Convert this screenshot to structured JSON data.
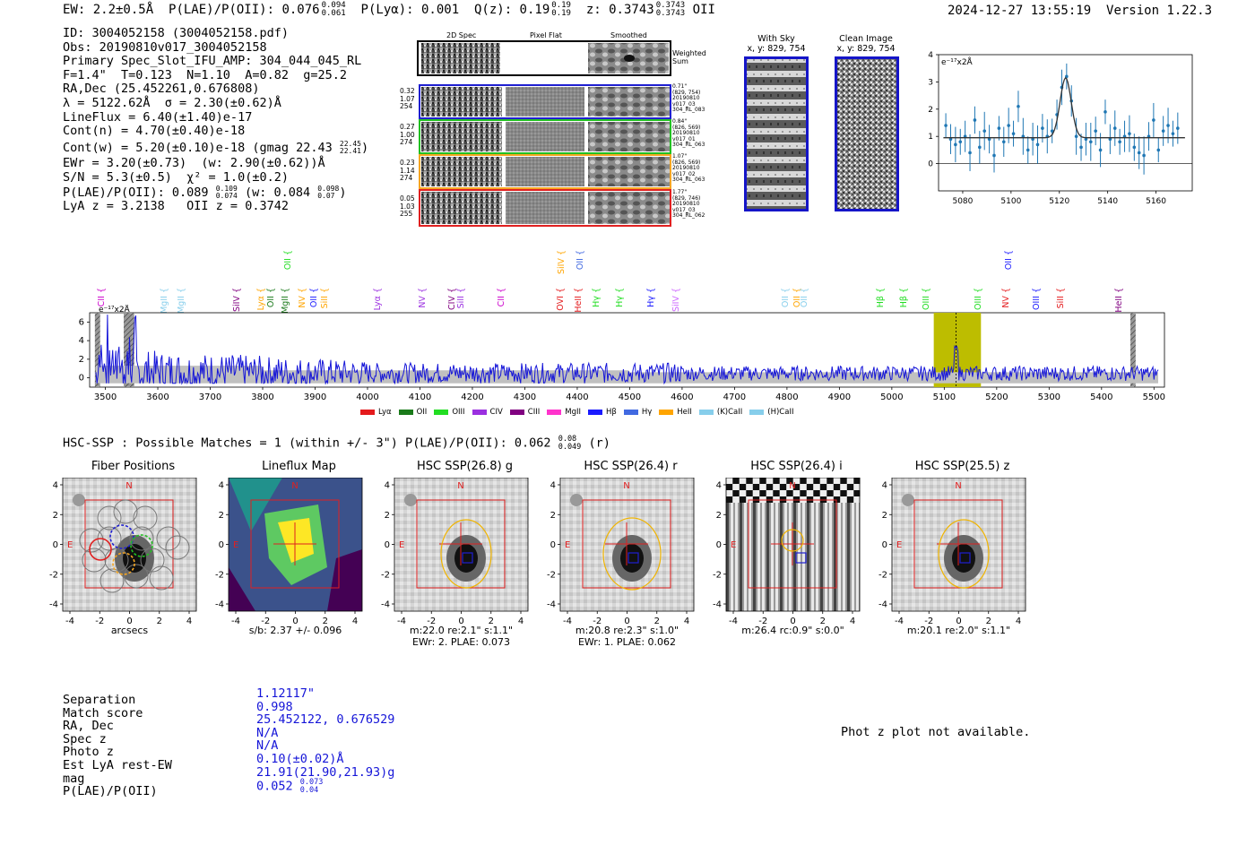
{
  "header": {
    "ew": "EW: 2.2±0.5Å",
    "plae": "P(LAE)/P(OII): 0.076",
    "plae_hi": "0.094",
    "plae_lo": "0.061",
    "plya": "P(Lyα): 0.001",
    "qz": "Q(z): 0.19",
    "qz_hi": "0.19",
    "qz_lo": "0.19",
    "z": "z: 0.3743",
    "z_hi": "0.3743",
    "z_lo": "0.3743",
    "z_line": "OII",
    "timestamp": "2024-12-27 13:55:19",
    "version": "Version 1.22.3"
  },
  "info": {
    "lines": [
      "ID: 3004052158 (3004052158.pdf)",
      "Obs: 20190810v017_3004052158",
      "Primary Spec_Slot_IFU_AMP: 304_044_045_RL",
      "F=1.4\"  T=0.123  N=1.10  A=0.82  g=25.2",
      "RA,Dec (25.452261,0.676808)",
      "λ = 5122.62Å  σ = 2.30(±0.62)Å",
      "LineFlux = 6.40(±1.40)e-17",
      "Cont(n) = 4.70(±0.40)e-18"
    ],
    "contw": "Cont(w) = 5.20(±0.10)e-18 (gmag 22.43",
    "contw_hi": "22.45",
    "contw_lo": "22.41",
    "contw_end": ")",
    "ewr": "EWr = 3.20(±0.73)  (w: 2.90(±0.62))Å",
    "sn": "S/N = 5.3(±0.5)  χ² = 1.0(±0.2)",
    "plae2": "P(LAE)/P(OII): 0.089",
    "plae2_hi": "0.109",
    "plae2_lo": "0.074",
    "plae2_w": "(w: 0.084",
    "plae2_w_hi": "0.098",
    "plae2_w_lo": "0.07",
    "plae2_end": ")",
    "lyaz": "LyA z = 3.2138   OII z = 0.3742"
  },
  "cutouts": {
    "col_headers": [
      "2D Spec",
      "Pixel Flat",
      "Smoothed"
    ],
    "weighted_sum": "Weighted\nSum",
    "rows": [
      {
        "left": "0.32\n1.07\n254",
        "right": "0.71\"\n(829, 754)\n20190810\nv017_03\n304_RL_083",
        "color": "#1f1fd0"
      },
      {
        "left": "0.27\n1.00\n274",
        "right": "0.84\"\n(826, 569)\n20190810\nv017_01\n304_RL_063",
        "color": "#22c022"
      },
      {
        "left": "0.23\n1.14\n274",
        "right": "1.07\"\n(826, 569)\n20190810\nv017_02\n304_RL_063",
        "color": "#f5a623"
      },
      {
        "left": "0.05\n1.03\n255",
        "right": "1.77\"\n(829, 746)\n20190810\nv017_03\n304_RL_062",
        "color": "#e02020"
      }
    ]
  },
  "sky": {
    "with_sky_title": "With Sky",
    "with_sky_xy": "x, y: 829, 754",
    "clean_title": "Clean Image",
    "clean_xy": "x, y: 829, 754"
  },
  "chart_data": [
    {
      "type": "line",
      "name": "line-fit",
      "ylabel": "e⁻¹⁷x2Å",
      "xlim": [
        5070,
        5175
      ],
      "ylim": [
        -1,
        4
      ],
      "xticks": [
        "5080",
        "5100",
        "5120",
        "5140",
        "5160"
      ],
      "yticks": [
        "0",
        "1",
        "2",
        "3",
        "4"
      ],
      "x": [
        5073,
        5075,
        5077,
        5079,
        5081,
        5083,
        5085,
        5087,
        5089,
        5091,
        5093,
        5095,
        5097,
        5099,
        5101,
        5103,
        5105,
        5107,
        5109,
        5111,
        5113,
        5115,
        5117,
        5119,
        5121,
        5123,
        5125,
        5127,
        5129,
        5131,
        5133,
        5135,
        5137,
        5139,
        5141,
        5143,
        5145,
        5147,
        5149,
        5151,
        5153,
        5155,
        5157,
        5159,
        5161,
        5163,
        5165,
        5167,
        5169
      ],
      "values": [
        1.4,
        0.9,
        0.7,
        0.8,
        1.0,
        0.4,
        1.6,
        0.6,
        1.2,
        0.9,
        0.3,
        1.3,
        0.8,
        1.4,
        1.1,
        2.1,
        1.0,
        0.5,
        0.9,
        0.7,
        1.3,
        1.0,
        1.2,
        1.8,
        2.8,
        3.2,
        2.3,
        1.0,
        0.6,
        0.9,
        0.8,
        1.2,
        0.5,
        1.9,
        0.9,
        1.3,
        0.8,
        1.0,
        1.1,
        0.6,
        0.4,
        0.3,
        1.0,
        1.6,
        0.5,
        1.2,
        1.4,
        1.1,
        1.3
      ],
      "fit": {
        "continuum": 0.95,
        "center": 5122.6,
        "sigma": 2.3,
        "amplitude": 2.2
      }
    },
    {
      "type": "line",
      "name": "full-spectrum",
      "ylabel": "e⁻¹⁷x2Å",
      "xlim": [
        3470,
        5520
      ],
      "ylim": [
        -1,
        7
      ],
      "xticks": [
        "3500",
        "3600",
        "3700",
        "3800",
        "3900",
        "4000",
        "4100",
        "4200",
        "4300",
        "4400",
        "4500",
        "4600",
        "4700",
        "4800",
        "4900",
        "5000",
        "5100",
        "5200",
        "5300",
        "5400",
        "5500"
      ],
      "yticks": [
        "0",
        "2",
        "4",
        "6"
      ],
      "highlight": [
        5080,
        5170
      ],
      "line_center": 5122.6,
      "hatched": [
        [
          3480,
          3490
        ],
        [
          3535,
          3555
        ],
        [
          5455,
          5465
        ]
      ],
      "legend": [
        {
          "label": "Lyα",
          "color": "#e41a1c"
        },
        {
          "label": "OII",
          "color": "#1a7a1a"
        },
        {
          "label": "OIII",
          "color": "#22dd22"
        },
        {
          "label": "CIV",
          "color": "#9b30e0"
        },
        {
          "label": "CIII",
          "color": "#800080"
        },
        {
          "label": "MgII",
          "color": "#ff33cc"
        },
        {
          "label": "Hβ",
          "color": "#1a1aff"
        },
        {
          "label": "Hγ",
          "color": "#4169e1"
        },
        {
          "label": "HeII",
          "color": "#ffa500"
        },
        {
          "label": "(K)CaII",
          "color": "#87ceeb"
        },
        {
          "label": "(H)CaII",
          "color": "#87ceeb"
        }
      ],
      "line_labels": [
        {
          "label": "CII",
          "wave": 3493,
          "color": "#cc00cc",
          "tier": 0
        },
        {
          "label": "MgII",
          "wave": 3612,
          "color": "#87ceeb",
          "tier": 0
        },
        {
          "label": "MgII",
          "wave": 3645,
          "color": "#87ceeb",
          "tier": 0
        },
        {
          "label": "SiIV",
          "wave": 3750,
          "color": "#800080",
          "tier": 0
        },
        {
          "label": "Lyα",
          "wave": 3797,
          "color": "#ffa500",
          "tier": 0
        },
        {
          "label": "OII",
          "wave": 3815,
          "color": "#1a7a1a",
          "tier": 0
        },
        {
          "label": "MgII",
          "wave": 3843,
          "color": "#1a7a1a",
          "tier": 0
        },
        {
          "label": "OII",
          "wave": 3848,
          "color": "#22dd22",
          "tier": 1
        },
        {
          "label": "NV",
          "wave": 3876,
          "color": "#ffa500",
          "tier": 0
        },
        {
          "label": "OII",
          "wave": 3897,
          "color": "#1a1aff",
          "tier": 0
        },
        {
          "label": "SiII",
          "wave": 3918,
          "color": "#ffa500",
          "tier": 0
        },
        {
          "label": "Lyα",
          "wave": 4018,
          "color": "#9b30e0",
          "tier": 0
        },
        {
          "label": "NV",
          "wave": 4104,
          "color": "#9b30e0",
          "tier": 0
        },
        {
          "label": "CIV",
          "wave": 4160,
          "color": "#800080",
          "tier": 0
        },
        {
          "label": "SiII",
          "wave": 4178,
          "color": "#9b30e0",
          "tier": 0
        },
        {
          "label": "CII",
          "wave": 4255,
          "color": "#cc00cc",
          "tier": 0
        },
        {
          "label": "OVI",
          "wave": 4367,
          "color": "#e41a1c",
          "tier": 0
        },
        {
          "label": "SiIV",
          "wave": 4370,
          "color": "#ffa500",
          "tier": 1
        },
        {
          "label": "HeII",
          "wave": 4402,
          "color": "#e41a1c",
          "tier": 0
        },
        {
          "label": "OII",
          "wave": 4405,
          "color": "#4169e1",
          "tier": 1
        },
        {
          "label": "Hγ",
          "wave": 4436,
          "color": "#22dd22",
          "tier": 0
        },
        {
          "label": "Hγ",
          "wave": 4480,
          "color": "#22dd22",
          "tier": 0
        },
        {
          "label": "Hγ",
          "wave": 4541,
          "color": "#1a1aff",
          "tier": 0
        },
        {
          "label": "SiIV",
          "wave": 4588,
          "color": "#cc66ff",
          "tier": 0
        },
        {
          "label": "OII",
          "wave": 4797,
          "color": "#87ceeb",
          "tier": 0
        },
        {
          "label": "OII",
          "wave": 4819,
          "color": "#ffa500",
          "tier": 0
        },
        {
          "label": "OII",
          "wave": 4832,
          "color": "#87ceeb",
          "tier": 0
        },
        {
          "label": "Hβ",
          "wave": 4978,
          "color": "#22dd22",
          "tier": 0
        },
        {
          "label": "Hβ",
          "wave": 5022,
          "color": "#22dd22",
          "tier": 0
        },
        {
          "label": "OIII",
          "wave": 5065,
          "color": "#22dd22",
          "tier": 0
        },
        {
          "label": "OIII",
          "wave": 5164,
          "color": "#22dd22",
          "tier": 0
        },
        {
          "label": "NV",
          "wave": 5217,
          "color": "#e41a1c",
          "tier": 0
        },
        {
          "label": "OII",
          "wave": 5222,
          "color": "#1a1aff",
          "tier": 1
        },
        {
          "label": "OIII",
          "wave": 5276,
          "color": "#1a1aff",
          "tier": 0
        },
        {
          "label": "SiII",
          "wave": 5322,
          "color": "#e41a1c",
          "tier": 0
        },
        {
          "label": "HeII",
          "wave": 5432,
          "color": "#800080",
          "tier": 0
        }
      ]
    }
  ],
  "hsc": {
    "match_text": "HSC-SSP : Possible Matches = 1 (within +/- 3\")  P(LAE)/P(OII): 0.062",
    "match_hi": "0.08",
    "match_lo": "0.049",
    "match_band": "(r)",
    "panels": [
      {
        "title": "Fiber Positions",
        "xlabel": "arcsecs",
        "xlabel2": ""
      },
      {
        "title": "Lineflux Map",
        "xlabel": "s/b: 2.37 +/- 0.096",
        "xlabel2": ""
      },
      {
        "title": "HSC SSP(26.8) g",
        "xlabel": "m:22.0  re:2.1\"  s:1.1\"",
        "xlabel2": "EWr: 2. PLAE: 0.073"
      },
      {
        "title": "HSC SSP(26.4) r",
        "xlabel": "m:20.8  re:2.3\"  s:1.0\"",
        "xlabel2": "EWr: 1. PLAE: 0.062"
      },
      {
        "title": "HSC SSP(26.4) i",
        "xlabel": "m:26.4 rc:0.9\"  s:0.0\"",
        "xlabel2": ""
      },
      {
        "title": "HSC SSP(25.5) z",
        "xlabel": "m:20.1  re:2.0\"  s:1.1\"",
        "xlabel2": ""
      }
    ],
    "ticks": [
      "-4",
      "-2",
      "0",
      "2",
      "4"
    ],
    "north": "N",
    "east": "E"
  },
  "bottom": {
    "labels": [
      "Separation",
      "Match score",
      "RA, Dec",
      "Spec z",
      "Photo z",
      "Est LyA rest-EW",
      "mag",
      "P(LAE)/P(OII)"
    ],
    "values": [
      "1.12117\"",
      "0.998",
      "25.452122, 0.676529",
      "N/A",
      "N/A",
      "0.10(±0.02)Å",
      "21.91(21.90,21.93)g",
      "0.052"
    ],
    "plae_hi": "0.073",
    "plae_lo": "0.04",
    "photz_note": "Phot z plot not available."
  }
}
